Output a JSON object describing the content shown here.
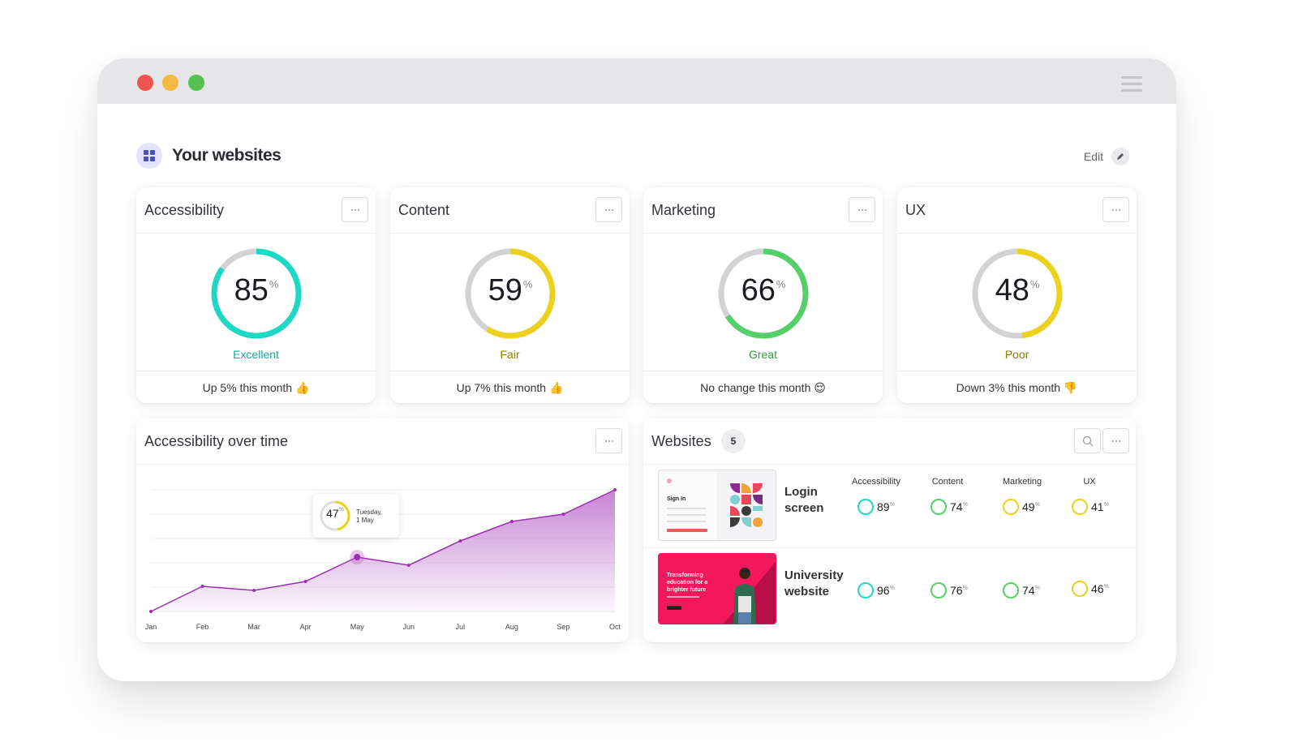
{
  "window": {
    "title": "Your websites",
    "edit_label": "Edit"
  },
  "scores": [
    {
      "title": "Accessibility",
      "value": "85",
      "pct_symbol": "%",
      "label": "Excellent",
      "label_color": "#15a89a",
      "ring_color": "#1ed8c6",
      "fraction": 0.85,
      "footer": "Up 5% this month 👍"
    },
    {
      "title": "Content",
      "value": "59",
      "pct_symbol": "%",
      "label": "Fair",
      "label_color": "#8a7a00",
      "ring_color": "#ecd21f",
      "fraction": 0.59,
      "footer": "Up 7% this month 👍"
    },
    {
      "title": "Marketing",
      "value": "66",
      "pct_symbol": "%",
      "label": "Great",
      "label_color": "#2e9a3a",
      "ring_color": "#55cf6a",
      "fraction": 0.66,
      "footer": "No change this month 😌"
    },
    {
      "title": "UX",
      "value": "48",
      "pct_symbol": "%",
      "label": "Poor",
      "label_color": "#8a7a00",
      "ring_color": "#ecd21f",
      "fraction": 0.48,
      "footer": "Down 3% this month 👎"
    }
  ],
  "over_time": {
    "title": "Accessibility over time",
    "tooltip_value": "47",
    "tooltip_pct": "%",
    "tooltip_day": "Tuesday,",
    "tooltip_date": "1 May"
  },
  "chart_data": {
    "type": "area",
    "categories": [
      "Jan",
      "Feb",
      "Mar",
      "Apr",
      "May",
      "Jun",
      "Jul",
      "Aug",
      "Sep",
      "Oct"
    ],
    "values": [
      0,
      31,
      26,
      37,
      67,
      57,
      87,
      111,
      120,
      150
    ],
    "line_color": "#9b2fae",
    "fill_color": "#b45bc6",
    "grid": true
  },
  "websites": {
    "title": "Websites",
    "count": "5",
    "columns": [
      "Accessibility",
      "Content",
      "Marketing",
      "UX"
    ],
    "rows": [
      {
        "name_line1": "Login",
        "name_line2": "screen",
        "thumb_sign_in": "Sign In",
        "scores": [
          {
            "value": "89",
            "color": "#1ed8c6"
          },
          {
            "value": "74",
            "color": "#55cf6a"
          },
          {
            "value": "49",
            "color": "#ecd21f"
          },
          {
            "value": "41",
            "color": "#ecd21f"
          }
        ]
      },
      {
        "name_line1": "University",
        "name_line2": "website",
        "thumb_headline1": "Transforming",
        "thumb_headline2": "education for a",
        "thumb_headline3": "brighter future",
        "scores": [
          {
            "value": "96",
            "color": "#1ed8c6"
          },
          {
            "value": "76",
            "color": "#55cf6a"
          },
          {
            "value": "74",
            "color": "#55cf6a"
          },
          {
            "value": "46",
            "color": "#ecd21f"
          }
        ]
      }
    ],
    "pct_symbol": "%"
  }
}
